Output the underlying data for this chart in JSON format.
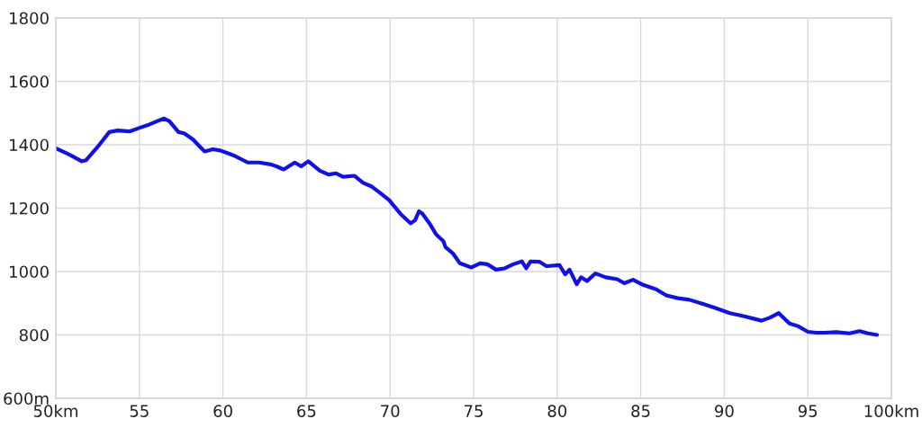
{
  "chart_data": {
    "type": "line",
    "x": [
      50.0,
      50.78,
      51.55,
      51.8,
      52.5,
      53.2,
      53.7,
      54.4,
      55.1,
      55.6,
      56.05,
      56.48,
      56.8,
      57.34,
      57.68,
      58.2,
      58.64,
      58.9,
      59.4,
      59.84,
      60.45,
      60.7,
      61.49,
      62.18,
      62.87,
      63.2,
      63.64,
      64.3,
      64.68,
      65.11,
      65.8,
      66.32,
      66.75,
      67.19,
      67.88,
      68.39,
      68.91,
      69.43,
      69.95,
      70.64,
      71.24,
      71.5,
      71.73,
      71.93,
      72.36,
      72.75,
      73.19,
      73.32,
      73.75,
      74.18,
      74.87,
      75.39,
      75.82,
      76.34,
      76.86,
      77.37,
      77.89,
      78.15,
      78.41,
      78.93,
      79.36,
      80.14,
      80.48,
      80.74,
      81.17,
      81.43,
      81.78,
      82.29,
      82.9,
      83.59,
      84.02,
      84.54,
      85.14,
      85.92,
      86.53,
      87.22,
      87.91,
      88.77,
      89.46,
      90.33,
      91.19,
      92.23,
      92.75,
      93.26,
      93.9,
      94.4,
      95.0,
      95.5,
      96.0,
      96.71,
      97.49,
      98.1,
      98.6,
      99.14
    ],
    "series": [
      {
        "color": "#0f0fef",
        "values": [
          1389,
          1370,
          1348,
          1351,
          1393,
          1440,
          1445,
          1442,
          1455,
          1464,
          1474,
          1483,
          1474,
          1440,
          1436,
          1417,
          1393,
          1379,
          1386,
          1382,
          1370,
          1365,
          1344,
          1344,
          1338,
          1332,
          1322,
          1344,
          1332,
          1348,
          1318,
          1306,
          1310,
          1299,
          1302,
          1280,
          1268,
          1247,
          1225,
          1181,
          1152,
          1162,
          1190,
          1183,
          1152,
          1118,
          1096,
          1077,
          1058,
          1026,
          1013,
          1026,
          1023,
          1006,
          1010,
          1023,
          1032,
          1010,
          1032,
          1031,
          1017,
          1020,
          991,
          1006,
          960,
          982,
          970,
          994,
          982,
          976,
          963,
          974,
          958,
          944,
          925,
          916,
          911,
          897,
          885,
          869,
          859,
          845,
          855,
          869,
          836,
          828,
          810,
          807,
          807,
          809,
          805,
          812,
          805,
          800
        ]
      }
    ],
    "xlim": [
      50,
      100
    ],
    "xticks": [
      {
        "value": 50,
        "label": "50km"
      },
      55,
      60,
      65,
      70,
      75,
      80,
      85,
      90,
      95,
      {
        "value": 100,
        "label": "100km"
      }
    ],
    "ylim": [
      600,
      1800
    ],
    "yticks": [
      {
        "value": 600,
        "label": "600m"
      },
      800,
      1000,
      1200,
      1400,
      1600,
      1800
    ],
    "grid": true,
    "line_style": "solid"
  }
}
